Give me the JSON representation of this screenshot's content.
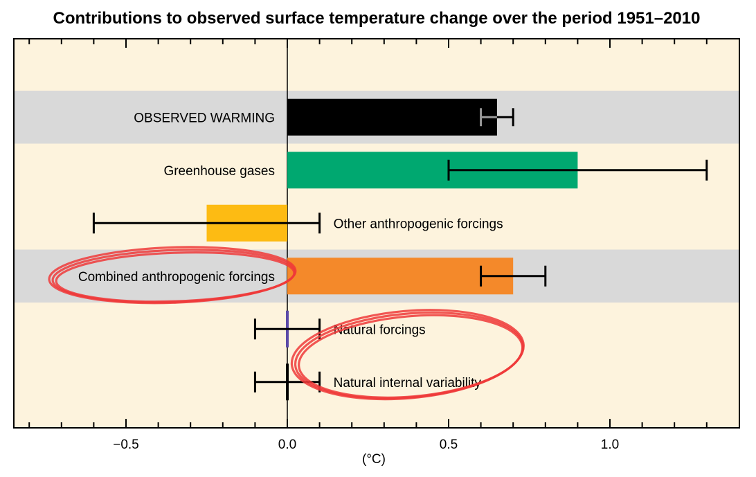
{
  "chart_data": {
    "type": "bar",
    "orientation": "horizontal",
    "title": "Contributions to observed surface temperature change over the period 1951–2010",
    "xlabel": "(°C)",
    "xlim": [
      -0.85,
      1.4
    ],
    "xticks": [
      -0.5,
      0.0,
      0.5,
      1.0
    ],
    "xtick_labels": [
      "−0.5",
      "0.0",
      "0.5",
      "1.0"
    ],
    "grid": false,
    "categories": [
      "OBSERVED WARMING",
      "Greenhouse gases",
      "Other anthropogenic forcings",
      "Combined anthropogenic forcings",
      "Natural forcings",
      "Natural internal variability"
    ],
    "values": [
      0.65,
      0.9,
      -0.25,
      0.7,
      0.0,
      0.0
    ],
    "error_low": [
      0.6,
      0.5,
      -0.6,
      0.6,
      -0.1,
      -0.1
    ],
    "error_high": [
      0.7,
      1.3,
      0.1,
      0.8,
      0.1,
      0.1
    ],
    "colors": [
      "#000000",
      "#00a870",
      "#fdbb13",
      "#f4892a",
      "#5b4aa8",
      "#000000"
    ],
    "band_rows": [
      0,
      3
    ],
    "highlight_circles": [
      "Combined anthropogenic forcings",
      "Natural forcings and Natural internal variability"
    ]
  },
  "colors": {
    "background": "#fdf3dd",
    "band": "#d9d9d9",
    "circle": "#ee3a3a",
    "error_bar_observed": "#9a9a9a"
  }
}
